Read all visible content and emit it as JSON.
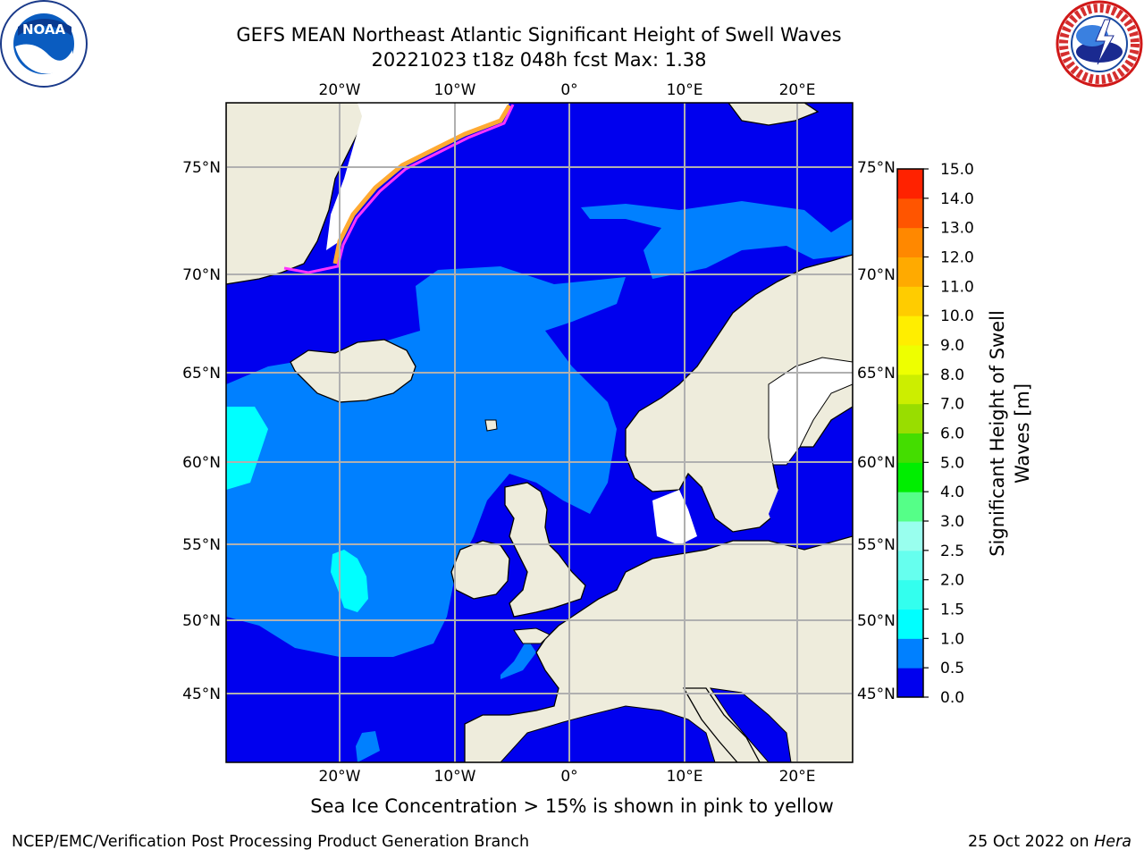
{
  "header": {
    "title_line1": "GEFS MEAN Northeast Atlantic Significant Height of Swell Waves",
    "title_line2": "20221023 t18z 048h fcst    Max: 1.38"
  },
  "logos": {
    "left": "NATIONAL OCEANIC AND ATMOSPHERIC ADMINISTRATION · U.S. DEPARTMENT OF COMMERCE · NOAA",
    "right": "NATIONAL WEATHER SERVICE"
  },
  "map": {
    "lon_labels": [
      "20°W",
      "10°W",
      "0°",
      "10°E",
      "20°E"
    ],
    "lat_labels": [
      "75°N",
      "70°N",
      "65°N",
      "60°N",
      "55°N",
      "50°N",
      "45°N"
    ],
    "colors": {
      "land": "#eeecdc",
      "sea_low": "#0000ee",
      "sea_mid": "#0080ff",
      "sea_cyan": "#00ffff",
      "sea_light": "#33ffdd",
      "grid": "#b0b0b0",
      "ice_pink": "#ff33ff",
      "ice_orange": "#ffaa33"
    }
  },
  "colorbar": {
    "label_line1": "Significant Height of Swell",
    "label_line2": "Waves [m]",
    "ticks": [
      "0.0",
      "0.5",
      "1.0",
      "1.5",
      "2.0",
      "2.5",
      "3.0",
      "4.0",
      "5.0",
      "6.0",
      "7.0",
      "8.0",
      "9.0",
      "10.0",
      "11.0",
      "12.0",
      "13.0",
      "14.0",
      "15.0"
    ],
    "colors": [
      "#0000ee",
      "#0080ff",
      "#00ffff",
      "#33ffee",
      "#66ffee",
      "#99ffee",
      "#55ff88",
      "#00ee00",
      "#44dd00",
      "#99dd00",
      "#ccee00",
      "#eeff00",
      "#ffee00",
      "#ffcc00",
      "#ffaa00",
      "#ff8800",
      "#ff5500",
      "#ff2200"
    ]
  },
  "notes": {
    "ice": "Sea Ice Concentration > 15% is shown in pink to yellow",
    "footer_left": "NCEP/EMC/Verification Post Processing Product Generation Branch",
    "footer_date": "25 Oct 2022 on",
    "footer_host": "Hera"
  }
}
